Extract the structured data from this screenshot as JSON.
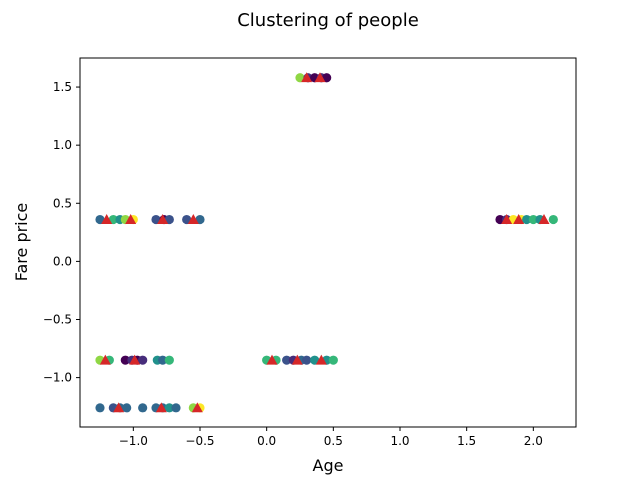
{
  "chart_data": {
    "type": "scatter",
    "title": "Clustering of people",
    "xlabel": "Age",
    "ylabel": "Fare price",
    "xlim": [
      -1.4,
      2.32
    ],
    "ylim": [
      -1.425,
      1.75
    ],
    "xticks": [
      -1.0,
      -0.5,
      0.0,
      0.5,
      1.0,
      1.5,
      2.0
    ],
    "xtick_labels": [
      "−1.0",
      "−0.5",
      "0.0",
      "0.5",
      "1.0",
      "1.5",
      "2.0"
    ],
    "yticks": [
      -1.0,
      -0.5,
      0.0,
      0.5,
      1.0,
      1.5
    ],
    "ytick_labels": [
      "−1.0",
      "−0.5",
      "0.0",
      "0.5",
      "1.0",
      "1.5"
    ],
    "grid": false,
    "points": [
      {
        "x": 0.25,
        "y": 1.58,
        "color": "#8fd744"
      },
      {
        "x": 0.31,
        "y": 1.58,
        "color": "#472d7b"
      },
      {
        "x": 0.36,
        "y": 1.58,
        "color": "#440154"
      },
      {
        "x": 0.41,
        "y": 1.58,
        "color": "#472d7b"
      },
      {
        "x": 0.45,
        "y": 1.58,
        "color": "#440154"
      },
      {
        "x": -1.25,
        "y": 0.36,
        "color": "#31688e"
      },
      {
        "x": -1.15,
        "y": 0.36,
        "color": "#35b779"
      },
      {
        "x": -1.1,
        "y": 0.36,
        "color": "#21918c"
      },
      {
        "x": -1.06,
        "y": 0.36,
        "color": "#8fd744"
      },
      {
        "x": -1.0,
        "y": 0.36,
        "color": "#fde725"
      },
      {
        "x": -0.83,
        "y": 0.36,
        "color": "#3b528b"
      },
      {
        "x": -0.77,
        "y": 0.36,
        "color": "#440154"
      },
      {
        "x": -0.73,
        "y": 0.36,
        "color": "#3b528b"
      },
      {
        "x": -0.6,
        "y": 0.36,
        "color": "#3b528b"
      },
      {
        "x": -0.5,
        "y": 0.36,
        "color": "#31688e"
      },
      {
        "x": 1.75,
        "y": 0.36,
        "color": "#440154"
      },
      {
        "x": 1.8,
        "y": 0.36,
        "color": "#472d7b"
      },
      {
        "x": 1.85,
        "y": 0.36,
        "color": "#fde725"
      },
      {
        "x": 1.91,
        "y": 0.36,
        "color": "#fde725"
      },
      {
        "x": 1.95,
        "y": 0.36,
        "color": "#21918c"
      },
      {
        "x": 2.0,
        "y": 0.36,
        "color": "#35b779"
      },
      {
        "x": 2.05,
        "y": 0.36,
        "color": "#21918c"
      },
      {
        "x": 2.15,
        "y": 0.36,
        "color": "#35b779"
      },
      {
        "x": -1.25,
        "y": -0.85,
        "color": "#8fd744"
      },
      {
        "x": -1.18,
        "y": -0.85,
        "color": "#35b779"
      },
      {
        "x": -1.06,
        "y": -0.85,
        "color": "#440154"
      },
      {
        "x": -1.01,
        "y": -0.85,
        "color": "#472d7b"
      },
      {
        "x": -0.97,
        "y": -0.85,
        "color": "#440154"
      },
      {
        "x": -0.93,
        "y": -0.85,
        "color": "#472d7b"
      },
      {
        "x": -0.82,
        "y": -0.85,
        "color": "#21918c"
      },
      {
        "x": -0.78,
        "y": -0.85,
        "color": "#31688e"
      },
      {
        "x": -0.73,
        "y": -0.85,
        "color": "#35b779"
      },
      {
        "x": 0.0,
        "y": -0.85,
        "color": "#35b779"
      },
      {
        "x": 0.07,
        "y": -0.85,
        "color": "#35b779"
      },
      {
        "x": 0.15,
        "y": -0.85,
        "color": "#3b528b"
      },
      {
        "x": 0.2,
        "y": -0.85,
        "color": "#472d7b"
      },
      {
        "x": 0.26,
        "y": -0.85,
        "color": "#31688e"
      },
      {
        "x": 0.3,
        "y": -0.85,
        "color": "#3b528b"
      },
      {
        "x": 0.36,
        "y": -0.85,
        "color": "#21918c"
      },
      {
        "x": 0.45,
        "y": -0.85,
        "color": "#21918c"
      },
      {
        "x": 0.5,
        "y": -0.85,
        "color": "#35b779"
      },
      {
        "x": -1.25,
        "y": -1.26,
        "color": "#31688e"
      },
      {
        "x": -1.15,
        "y": -1.26,
        "color": "#3b528b"
      },
      {
        "x": -1.1,
        "y": -1.26,
        "color": "#31688e"
      },
      {
        "x": -1.05,
        "y": -1.26,
        "color": "#31688e"
      },
      {
        "x": -0.93,
        "y": -1.26,
        "color": "#31688e"
      },
      {
        "x": -0.83,
        "y": -1.26,
        "color": "#31688e"
      },
      {
        "x": -0.78,
        "y": -1.26,
        "color": "#31688e"
      },
      {
        "x": -0.73,
        "y": -1.26,
        "color": "#21918c"
      },
      {
        "x": -0.68,
        "y": -1.26,
        "color": "#31688e"
      },
      {
        "x": -0.55,
        "y": -1.26,
        "color": "#8fd744"
      },
      {
        "x": -0.5,
        "y": -1.26,
        "color": "#fde725"
      }
    ],
    "centroids": {
      "color": "#d62728",
      "marker": "triangle",
      "points": [
        {
          "x": 0.3,
          "y": 1.58
        },
        {
          "x": 0.4,
          "y": 1.58
        },
        {
          "x": -1.2,
          "y": 0.36
        },
        {
          "x": -1.02,
          "y": 0.36
        },
        {
          "x": -0.78,
          "y": 0.36
        },
        {
          "x": -0.55,
          "y": 0.36
        },
        {
          "x": 1.8,
          "y": 0.36
        },
        {
          "x": 1.89,
          "y": 0.36
        },
        {
          "x": 2.08,
          "y": 0.36
        },
        {
          "x": -1.21,
          "y": -0.85
        },
        {
          "x": -0.99,
          "y": -0.85
        },
        {
          "x": 0.04,
          "y": -0.85
        },
        {
          "x": 0.23,
          "y": -0.85
        },
        {
          "x": 0.41,
          "y": -0.85
        },
        {
          "x": -1.11,
          "y": -1.26
        },
        {
          "x": -0.79,
          "y": -1.26
        },
        {
          "x": -0.52,
          "y": -1.26
        }
      ]
    }
  }
}
